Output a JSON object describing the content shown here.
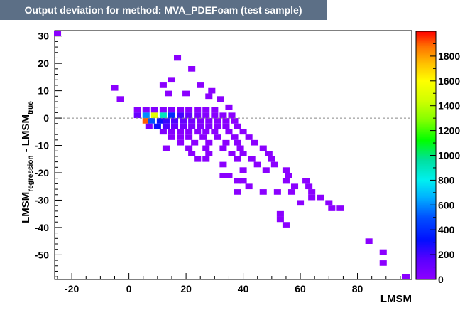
{
  "title": "Output deviation for method: MVA_PDEFoam (test sample)",
  "chart_data": {
    "type": "heatmap",
    "title": "Output deviation for method: MVA_PDEFoam (test sample)",
    "xlabel": "LMSM",
    "ylabel": {
      "main": "LMSM",
      "sub1": "regression",
      "mid": " - LMSM",
      "sub2": "true"
    },
    "xlim": [
      -26,
      99
    ],
    "ylim": [
      -59,
      32
    ],
    "x_ticks": [
      -20,
      0,
      20,
      40,
      60,
      80
    ],
    "y_ticks": [
      30,
      20,
      10,
      0,
      -10,
      -20,
      -30,
      -40,
      -50
    ],
    "color_scale": {
      "min": 0,
      "max": 2000,
      "ticks": [
        0,
        200,
        400,
        600,
        800,
        1000,
        1200,
        1400,
        1600,
        1800
      ]
    },
    "reference_line": {
      "y": 0,
      "style": "dashed"
    },
    "cell_size": {
      "x": 2.5,
      "y": 2
    },
    "cells": [
      [
        -25,
        31,
        2
      ],
      [
        17,
        22,
        2
      ],
      [
        22,
        18,
        2
      ],
      [
        15,
        14,
        2
      ],
      [
        -5,
        11,
        3
      ],
      [
        12,
        12,
        3
      ],
      [
        25,
        12,
        2
      ],
      [
        -3,
        7,
        3
      ],
      [
        14,
        9,
        3
      ],
      [
        20,
        9,
        3
      ],
      [
        29,
        10,
        3
      ],
      [
        28,
        8,
        3
      ],
      [
        32,
        7,
        3
      ],
      [
        35,
        4,
        3
      ],
      [
        3,
        3,
        20
      ],
      [
        6,
        3,
        25
      ],
      [
        9,
        3,
        35
      ],
      [
        12,
        3,
        25
      ],
      [
        15,
        3,
        22
      ],
      [
        18,
        3,
        18
      ],
      [
        21,
        3,
        14
      ],
      [
        24,
        3,
        8
      ],
      [
        27,
        3,
        4
      ],
      [
        30,
        3,
        3
      ],
      [
        3,
        1,
        120
      ],
      [
        6,
        1,
        600
      ],
      [
        9,
        1,
        1500
      ],
      [
        12,
        1,
        900
      ],
      [
        15,
        1,
        400
      ],
      [
        18,
        1,
        200
      ],
      [
        21,
        1,
        120
      ],
      [
        24,
        1,
        60
      ],
      [
        27,
        1,
        30
      ],
      [
        30,
        1,
        15
      ],
      [
        33,
        1,
        8
      ],
      [
        36,
        1,
        4
      ],
      [
        6,
        -1,
        1900
      ],
      [
        8,
        -1,
        500
      ],
      [
        11,
        -1,
        300
      ],
      [
        13,
        -1,
        220
      ],
      [
        16,
        -1,
        180
      ],
      [
        19,
        -1,
        120
      ],
      [
        22,
        -1,
        70
      ],
      [
        25,
        -1,
        40
      ],
      [
        28,
        -1,
        20
      ],
      [
        31,
        -1,
        10
      ],
      [
        34,
        -1,
        5
      ],
      [
        37,
        -1,
        3
      ],
      [
        7,
        -3,
        60
      ],
      [
        10,
        -3,
        300
      ],
      [
        13,
        -3,
        180
      ],
      [
        16,
        -3,
        120
      ],
      [
        19,
        -3,
        80
      ],
      [
        22,
        -3,
        50
      ],
      [
        25,
        -3,
        30
      ],
      [
        28,
        -3,
        18
      ],
      [
        31,
        -3,
        10
      ],
      [
        34,
        -3,
        5
      ],
      [
        38,
        -3,
        3
      ],
      [
        12,
        -5,
        40
      ],
      [
        15,
        -5,
        25
      ],
      [
        18,
        -5,
        15
      ],
      [
        21,
        -5,
        10
      ],
      [
        24,
        -5,
        8
      ],
      [
        27,
        -5,
        5
      ],
      [
        30,
        -5,
        4
      ],
      [
        35,
        -5,
        3
      ],
      [
        40,
        -5,
        3
      ],
      [
        15,
        -7,
        8
      ],
      [
        18,
        -7,
        6
      ],
      [
        21,
        -7,
        5
      ],
      [
        26,
        -7,
        4
      ],
      [
        31,
        -7,
        3
      ],
      [
        37,
        -7,
        3
      ],
      [
        42,
        -7,
        2
      ],
      [
        18,
        -9,
        4
      ],
      [
        23,
        -9,
        3
      ],
      [
        28,
        -9,
        3
      ],
      [
        34,
        -9,
        3
      ],
      [
        38,
        -9,
        2
      ],
      [
        44,
        -9,
        2
      ],
      [
        13,
        -11,
        2
      ],
      [
        21,
        -11,
        3
      ],
      [
        27,
        -11,
        3
      ],
      [
        33,
        -11,
        3
      ],
      [
        39,
        -11,
        2
      ],
      [
        47,
        -11,
        2
      ],
      [
        22,
        -13,
        2
      ],
      [
        28,
        -13,
        2
      ],
      [
        36,
        -13,
        2
      ],
      [
        40,
        -13,
        2
      ],
      [
        49,
        -13,
        2
      ],
      [
        24,
        -15,
        2
      ],
      [
        27,
        -15,
        2
      ],
      [
        38,
        -15,
        2
      ],
      [
        43,
        -15,
        2
      ],
      [
        50,
        -15,
        2
      ],
      [
        33,
        -17,
        2
      ],
      [
        45,
        -17,
        2
      ],
      [
        51,
        -17,
        2
      ],
      [
        40,
        -19,
        2
      ],
      [
        48,
        -19,
        2
      ],
      [
        55,
        -19,
        2
      ],
      [
        56,
        -21,
        2
      ],
      [
        33,
        -21,
        2
      ],
      [
        35,
        -21,
        2
      ],
      [
        38,
        -23,
        2
      ],
      [
        40,
        -23,
        2
      ],
      [
        55,
        -23,
        2
      ],
      [
        62,
        -23,
        2
      ],
      [
        42,
        -25,
        2
      ],
      [
        58,
        -25,
        2
      ],
      [
        63,
        -25,
        2
      ],
      [
        47,
        -27,
        2
      ],
      [
        52,
        -27,
        2
      ],
      [
        57,
        -27,
        2
      ],
      [
        64,
        -27,
        2
      ],
      [
        38,
        -27,
        2
      ],
      [
        64,
        -29,
        2
      ],
      [
        67,
        -29,
        2
      ],
      [
        60,
        -31,
        2
      ],
      [
        70,
        -31,
        2
      ],
      [
        71,
        -33,
        2
      ],
      [
        74,
        -33,
        2
      ],
      [
        53,
        -35,
        2
      ],
      [
        53,
        -37,
        2
      ],
      [
        55,
        -39,
        2
      ],
      [
        84,
        -45,
        2
      ],
      [
        89,
        -49,
        2
      ],
      [
        89,
        -53,
        2
      ],
      [
        97,
        -58,
        2
      ]
    ]
  }
}
